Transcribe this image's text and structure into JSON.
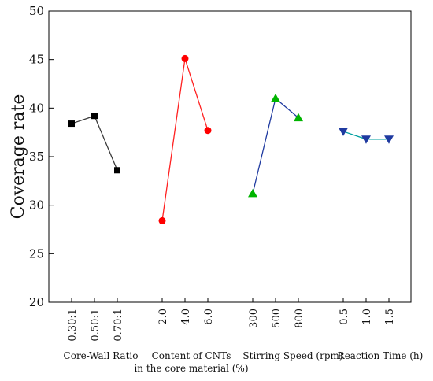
{
  "chart_data": {
    "type": "line",
    "title": "",
    "ylabel": "Coverage rate",
    "ylim": [
      20,
      50
    ],
    "yticks": [
      "20",
      "25",
      "30",
      "35",
      "40",
      "45",
      "50"
    ],
    "grid": false,
    "legend": "none",
    "groups": [
      {
        "name": "core-wall",
        "label_lines": [
          "Core-Wall Ratio"
        ],
        "color": "#3a3a3a",
        "marker": "square",
        "marker_color": "#000000",
        "categories": [
          "0.30:1",
          "0.50:1",
          "0.70:1"
        ],
        "values": [
          38.4,
          39.2,
          33.6
        ]
      },
      {
        "name": "cnt-content",
        "label_lines": [
          "Content of CNTs",
          "in the core material (%)"
        ],
        "color": "#ff2020",
        "marker": "circle",
        "marker_color": "#ff0000",
        "categories": [
          "2.0",
          "4.0",
          "6.0"
        ],
        "values": [
          28.4,
          45.1,
          37.7
        ]
      },
      {
        "name": "stirring-speed",
        "label_lines": [
          "Stirring Speed (rpm)"
        ],
        "color": "#1f3aa0",
        "marker": "triangle-up",
        "marker_color": "#00b400",
        "categories": [
          "300",
          "500",
          "800"
        ],
        "values": [
          31.2,
          41.0,
          39.0
        ]
      },
      {
        "name": "reaction-time",
        "label_lines": [
          "Reaction Time (h)"
        ],
        "color": "#00a0a0",
        "marker": "triangle-down",
        "marker_color": "#1f3aa0",
        "categories": [
          "0.5",
          "1.0",
          "1.5"
        ],
        "values": [
          37.6,
          36.8,
          36.8
        ]
      }
    ]
  }
}
